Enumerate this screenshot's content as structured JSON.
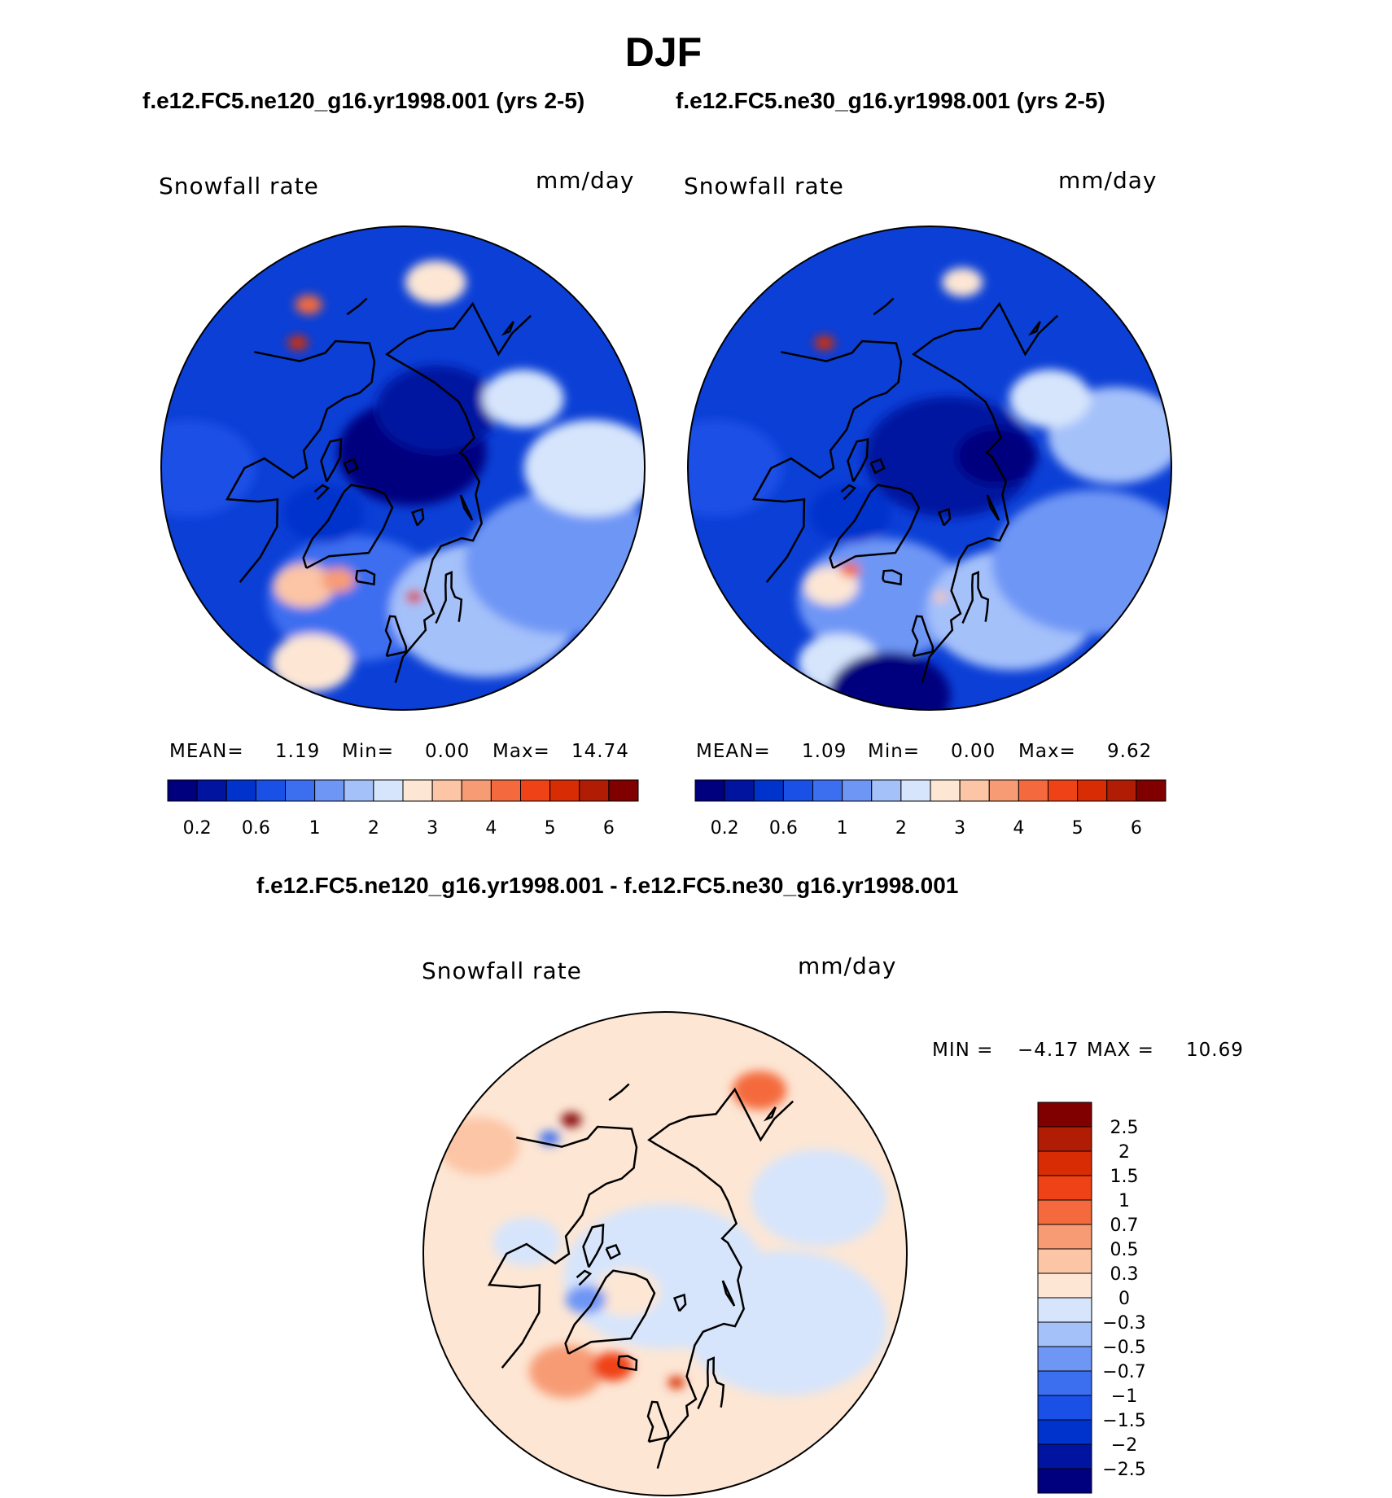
{
  "figure": {
    "season": "DJF",
    "case_a_title": "f.e12.FC5.ne120_g16.yr1998.001 (yrs 2-5)",
    "case_b_title": "f.e12.FC5.ne30_g16.yr1998.001 (yrs 2-5)",
    "diff_title": "f.e12.FC5.ne120_g16.yr1998.001 - f.e12.FC5.ne30_g16.yr1998.001"
  },
  "panels": [
    {
      "id": "ne120",
      "variable": "Snowfall rate",
      "units": "mm/day",
      "stats": {
        "mean_label": "MEAN=",
        "mean": "1.19",
        "min_label": "Min=",
        "min": "0.00",
        "max_label": "Max=",
        "max": "14.74"
      }
    },
    {
      "id": "ne30",
      "variable": "Snowfall rate",
      "units": "mm/day",
      "stats": {
        "mean_label": "MEAN=",
        "mean": "1.09",
        "min_label": "Min=",
        "min": "0.00",
        "max_label": "Max=",
        "max": "9.62"
      }
    },
    {
      "id": "diff",
      "variable": "Snowfall rate",
      "units": "mm/day",
      "stats": {
        "min_label": "MIN =",
        "min": "−4.17",
        "max_label": "MAX =",
        "max": "10.69"
      }
    }
  ],
  "colorbars": {
    "field": {
      "colors": [
        "#00007f",
        "#0014a0",
        "#0032cc",
        "#1a50e6",
        "#3c6ef0",
        "#6e96f5",
        "#a5c1fa",
        "#d6e5fc",
        "#fde6d4",
        "#fcc5a5",
        "#f79b74",
        "#f46a3e",
        "#ef4216",
        "#d82d04",
        "#b11c04",
        "#800000"
      ],
      "tick_labels": [
        "0.2",
        "0.6",
        "1",
        "2",
        "3",
        "4",
        "5",
        "6"
      ]
    },
    "diff": {
      "colors": [
        "#00007f",
        "#0014a0",
        "#0032cc",
        "#1a50e6",
        "#3c6ef0",
        "#6e96f5",
        "#a5c1fa",
        "#d6e5fc",
        "#fde6d4",
        "#fcc5a5",
        "#f79b74",
        "#f46a3e",
        "#ef4216",
        "#d82d04",
        "#b11c04",
        "#800000"
      ],
      "tick_labels": [
        "−2.5",
        "−2",
        "−1.5",
        "−1",
        "−0.7",
        "−0.5",
        "−0.3",
        "0",
        "0.3",
        "0.5",
        "0.7",
        "1",
        "1.5",
        "2",
        "2.5"
      ]
    }
  },
  "map_fields": {
    "ne120": {
      "background": "#0b3fd6",
      "blobs": [
        {
          "c": "#00007f",
          "lat": 86,
          "lon": 150,
          "r": 0.22
        },
        {
          "c": "#0014a0",
          "lat": 75,
          "lon": 150,
          "r": 0.18
        },
        {
          "c": "#3c6ef0",
          "lat": 60,
          "lon": -20,
          "r": 0.26
        },
        {
          "c": "#a5c1fa",
          "lat": 55,
          "lon": 30,
          "r": 0.28
        },
        {
          "c": "#6e96f5",
          "lat": 50,
          "lon": 60,
          "r": 0.3
        },
        {
          "c": "#d6e5fc",
          "lat": 50,
          "lon": 90,
          "r": 0.2
        },
        {
          "c": "#fcc5a5",
          "lat": 57,
          "lon": -40,
          "r": 0.09
        },
        {
          "c": "#f79b74",
          "lat": 62,
          "lon": -30,
          "r": 0.05
        },
        {
          "c": "#fde6d4",
          "lat": 45,
          "lon": -25,
          "r": 0.12
        },
        {
          "c": "#d82d04",
          "lat": 62,
          "lon": 5,
          "r": 0.025
        },
        {
          "c": "#fde6d4",
          "lat": 50,
          "lon": 170,
          "r": 0.09
        },
        {
          "c": "#d6e5fc",
          "lat": 60,
          "lon": 120,
          "r": 0.12
        },
        {
          "c": "#1a50e6",
          "lat": 45,
          "lon": -90,
          "r": 0.2
        },
        {
          "c": "#0032cc",
          "lat": 70,
          "lon": -60,
          "r": 0.12
        },
        {
          "c": "#d82d04",
          "lat": 55,
          "lon": -140,
          "r": 0.03
        },
        {
          "c": "#f46a3e",
          "lat": 50,
          "lon": -150,
          "r": 0.04
        }
      ]
    },
    "ne30": {
      "background": "#0b3fd6",
      "blobs": [
        {
          "c": "#0014a0",
          "lat": 85,
          "lon": 120,
          "r": 0.25
        },
        {
          "c": "#00007f",
          "lat": 75,
          "lon": 100,
          "r": 0.12
        },
        {
          "c": "#6e96f5",
          "lat": 60,
          "lon": -20,
          "r": 0.25
        },
        {
          "c": "#a5c1fa",
          "lat": 55,
          "lon": 30,
          "r": 0.25
        },
        {
          "c": "#6e96f5",
          "lat": 50,
          "lon": 60,
          "r": 0.3
        },
        {
          "c": "#a5c1fa",
          "lat": 50,
          "lon": 100,
          "r": 0.2
        },
        {
          "c": "#fde6d4",
          "lat": 57,
          "lon": -40,
          "r": 0.08
        },
        {
          "c": "#f46a3e",
          "lat": 62,
          "lon": -38,
          "r": 0.03
        },
        {
          "c": "#d6e5fc",
          "lat": 45,
          "lon": -25,
          "r": 0.12
        },
        {
          "c": "#fcc5a5",
          "lat": 62,
          "lon": 5,
          "r": 0.02
        },
        {
          "c": "#fde6d4",
          "lat": 50,
          "lon": 170,
          "r": 0.06
        },
        {
          "c": "#d6e5fc",
          "lat": 60,
          "lon": 120,
          "r": 0.12
        },
        {
          "c": "#1a50e6",
          "lat": 45,
          "lon": -90,
          "r": 0.2
        },
        {
          "c": "#0032cc",
          "lat": 70,
          "lon": -60,
          "r": 0.12
        },
        {
          "c": "#d82d04",
          "lat": 55,
          "lon": -140,
          "r": 0.03
        },
        {
          "c": "#00007f",
          "lat": 42,
          "lon": -10,
          "r": 0.18
        }
      ]
    },
    "diff": {
      "background": "#fde6d4",
      "blobs": [
        {
          "c": "#d6e5fc",
          "lat": 85,
          "lon": 0,
          "r": 0.3
        },
        {
          "c": "#fde6d4",
          "lat": 78,
          "lon": -45,
          "r": 0.1
        },
        {
          "c": "#d6e5fc",
          "lat": 60,
          "lon": 60,
          "r": 0.3
        },
        {
          "c": "#d6e5fc",
          "lat": 55,
          "lon": 110,
          "r": 0.2
        },
        {
          "c": "#f79b74",
          "lat": 57,
          "lon": -40,
          "r": 0.11
        },
        {
          "c": "#ef4216",
          "lat": 63,
          "lon": -25,
          "r": 0.06
        },
        {
          "c": "#f46a3e",
          "lat": 50,
          "lon": 150,
          "r": 0.08
        },
        {
          "c": "#fcc5a5",
          "lat": 45,
          "lon": -120,
          "r": 0.12
        },
        {
          "c": "#d6e5fc",
          "lat": 60,
          "lon": -95,
          "r": 0.1
        },
        {
          "c": "#6e96f5",
          "lat": 70,
          "lon": -60,
          "r": 0.06
        },
        {
          "c": "#d82d04",
          "lat": 62,
          "lon": 5,
          "r": 0.025
        },
        {
          "c": "#3c6ef0",
          "lat": 55,
          "lon": -135,
          "r": 0.03
        },
        {
          "c": "#800000",
          "lat": 55,
          "lon": -145,
          "r": 0.03
        }
      ]
    }
  }
}
